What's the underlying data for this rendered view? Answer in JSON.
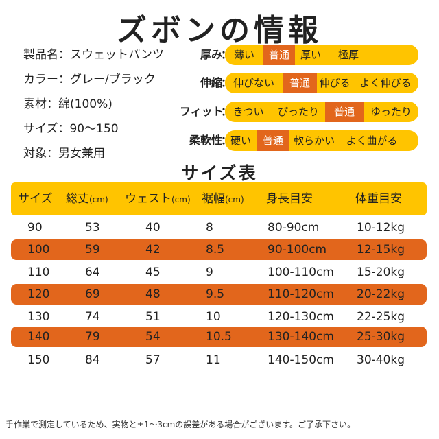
{
  "title": "ズボンの情報",
  "info": [
    "製品名：スウェットパンツ",
    "カラー：グレー/ブラック",
    "素材：綿(100%)",
    "サイズ：90〜150",
    "対象：男女兼用"
  ],
  "attributes": [
    {
      "label": "厚み",
      "options": [
        "薄い",
        "普通",
        "厚い",
        "極厚"
      ],
      "selected": "普通"
    },
    {
      "label": "伸縮",
      "options": [
        "伸びない",
        "普通",
        "伸びる",
        "よく伸びる"
      ],
      "selected": "普通"
    },
    {
      "label": "フィット",
      "options": [
        "きつい",
        "ぴったり",
        "普通",
        "ゆったり"
      ],
      "selected": "普通"
    },
    {
      "label": "柔軟性",
      "options": [
        "硬い",
        "普通",
        "軟らかい",
        "よく曲がる"
      ],
      "selected": "普通"
    }
  ],
  "attr_colon": "：",
  "size_table": {
    "title": "サイズ表",
    "headers": [
      {
        "label": "サイズ",
        "unit": ""
      },
      {
        "label": "総丈",
        "unit": "(cm)"
      },
      {
        "label": "ウェスト",
        "unit": "(cm)"
      },
      {
        "label": "裾幅",
        "unit": "(cm)"
      },
      {
        "label": "身長目安",
        "unit": ""
      },
      {
        "label": "体重目安",
        "unit": ""
      }
    ],
    "rows": [
      [
        "90",
        "53",
        "40",
        "8",
        "80-90cm",
        "10-12kg"
      ],
      [
        "100",
        "59",
        "42",
        "8.5",
        "90-100cm",
        "12-15kg"
      ],
      [
        "110",
        "64",
        "45",
        "9",
        "100-110cm",
        "15-20kg"
      ],
      [
        "120",
        "69",
        "48",
        "9.5",
        "110-120cm",
        "20-22kg"
      ],
      [
        "130",
        "74",
        "51",
        "10",
        "120-130cm",
        "22-25kg"
      ],
      [
        "140",
        "79",
        "54",
        "10.5",
        "130-140cm",
        "25-30kg"
      ],
      [
        "150",
        "84",
        "57",
        "11",
        "140-150cm",
        "30-40kg"
      ]
    ],
    "highlight_rows": [
      1,
      3,
      5
    ]
  },
  "footer": "手作業で測定しているため、実物と±1〜3cmの誤差がある場合がございます。ご了承下さい。",
  "colors": {
    "accent_yellow": "#ffc400",
    "accent_orange": "#e2661c",
    "text": "#222222"
  }
}
